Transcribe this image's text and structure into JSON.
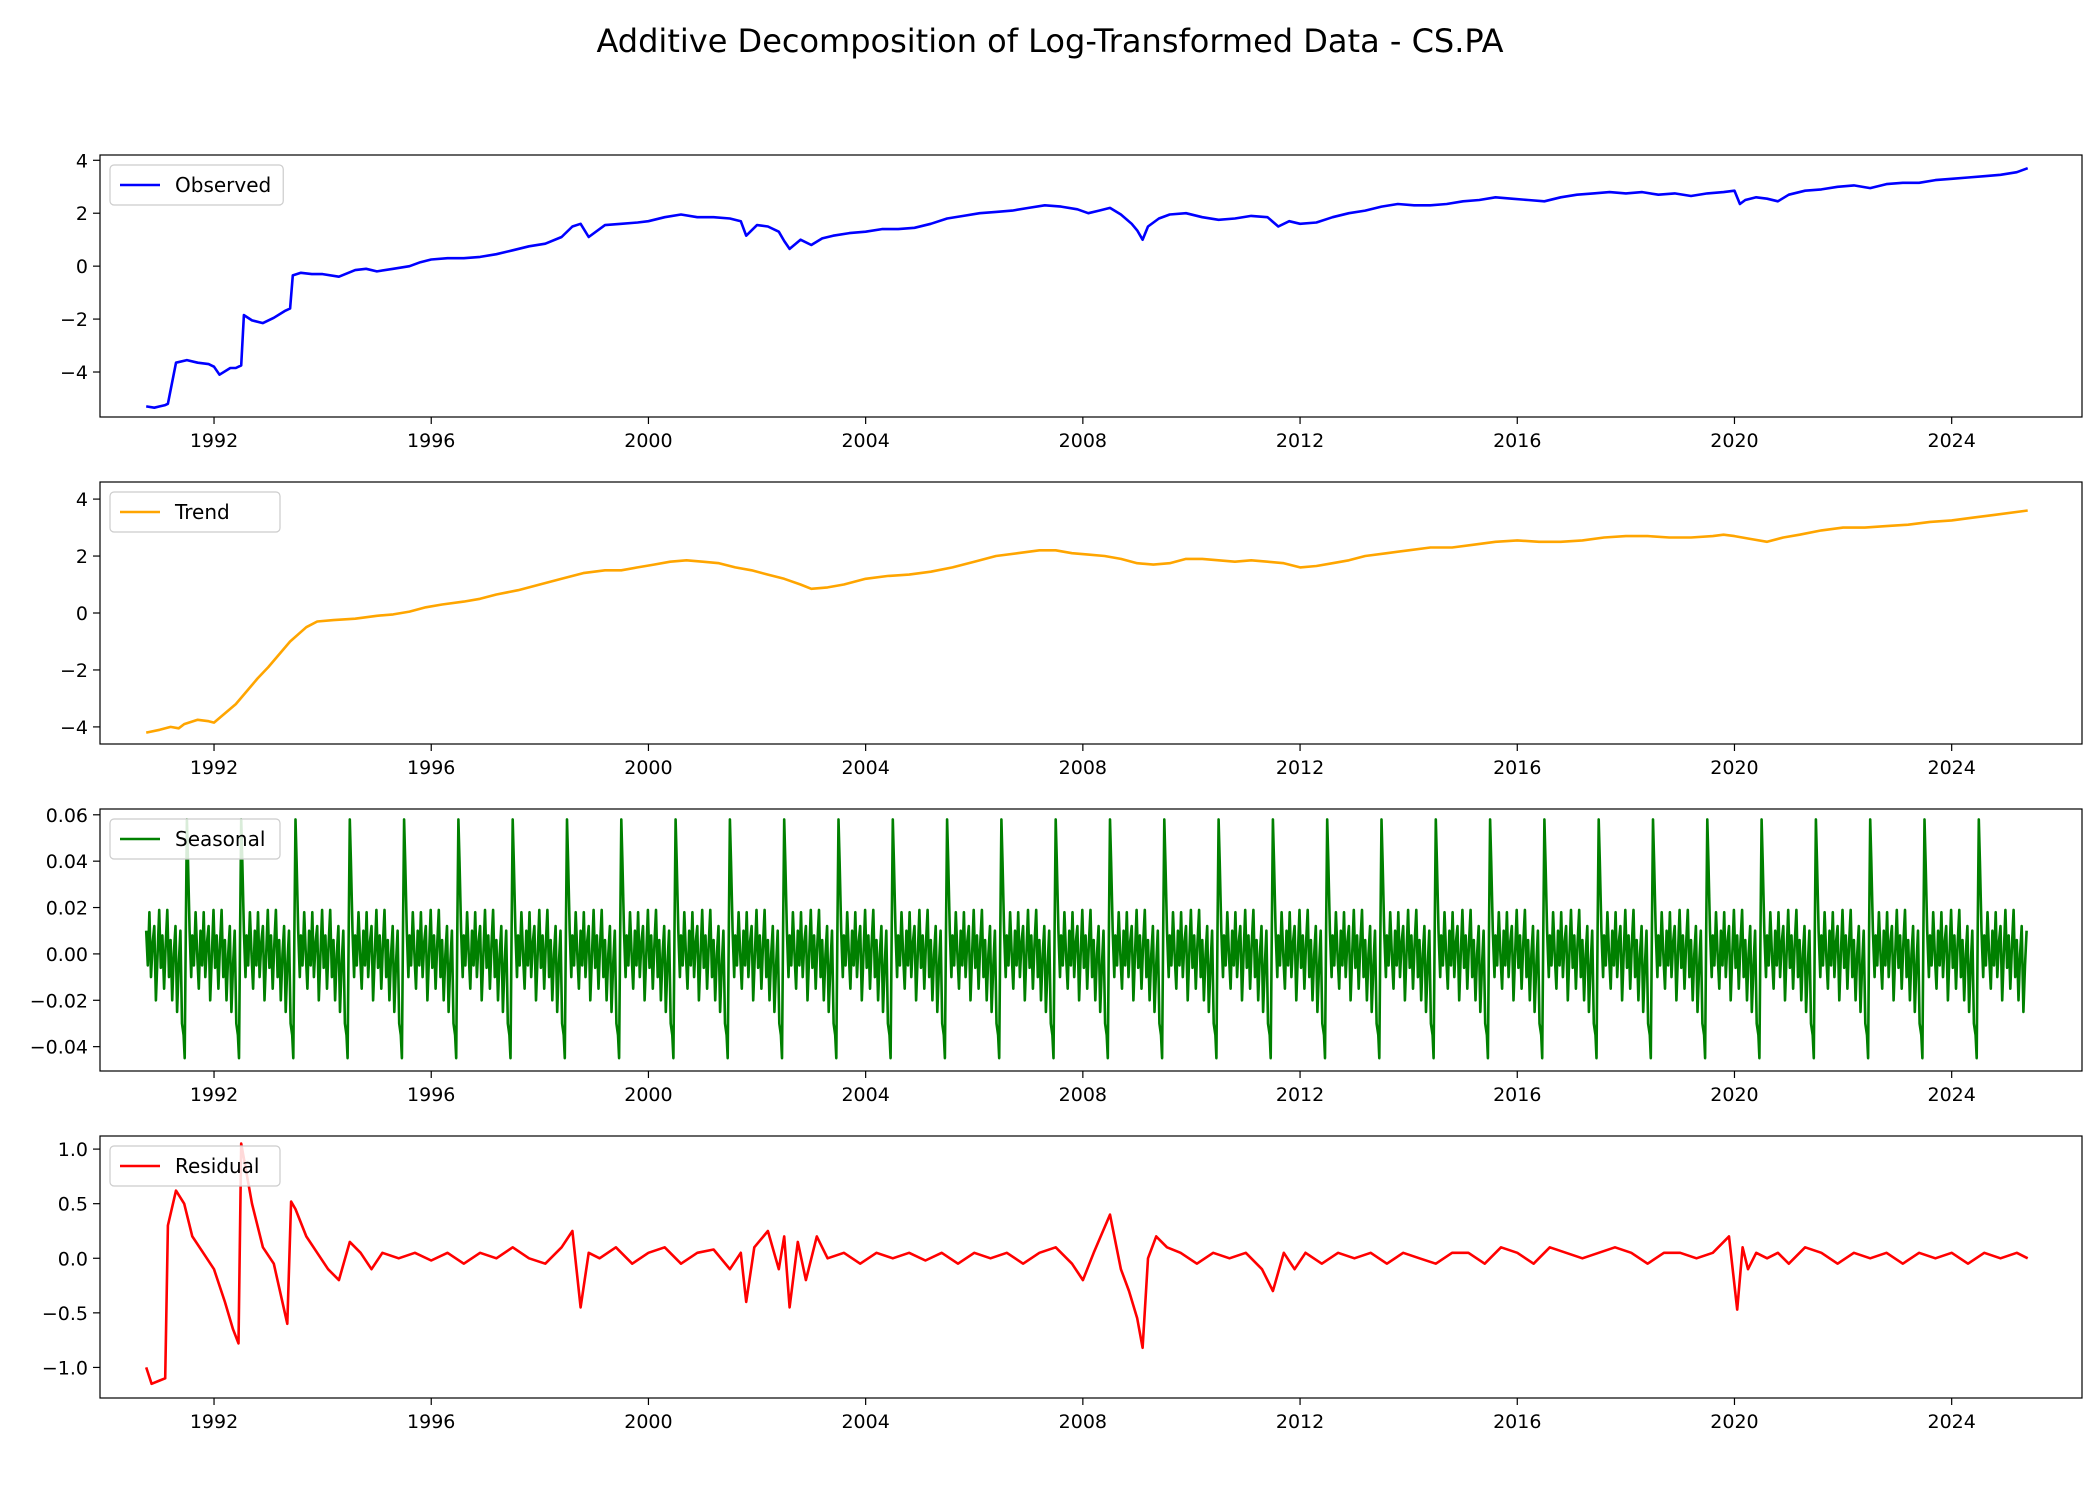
{
  "chart_data": {
    "type": "line",
    "title": "Additive Decomposition of Log-Transformed Data - CS.PA",
    "x_range": [
      1989.9,
      2026.4
    ],
    "x_ticks": [
      "1992",
      "1996",
      "2000",
      "2004",
      "2008",
      "2012",
      "2016",
      "2020",
      "2024"
    ],
    "panels": [
      {
        "name": "Observed",
        "color": "#0000ff",
        "legend": "upper left",
        "ylim": [
          -5.7,
          4.2
        ],
        "y_ticks": [
          "4",
          "2",
          "0",
          "−2",
          "−4"
        ],
        "y_tick_values": [
          4,
          2,
          0,
          -2,
          -4
        ],
        "x": [
          1990.75,
          1990.9,
          1991.0,
          1991.1,
          1991.15,
          1991.3,
          1991.5,
          1991.7,
          1991.9,
          1992.0,
          1992.1,
          1992.3,
          1992.4,
          1992.5,
          1992.55,
          1992.7,
          1992.9,
          1993.1,
          1993.3,
          1993.4,
          1993.45,
          1993.6,
          1993.8,
          1994.0,
          1994.3,
          1994.6,
          1994.8,
          1995.0,
          1995.3,
          1995.6,
          1995.8,
          1996.0,
          1996.3,
          1996.6,
          1996.9,
          1997.2,
          1997.5,
          1997.8,
          1998.1,
          1998.4,
          1998.6,
          1998.75,
          1998.9,
          1999.2,
          1999.5,
          1999.8,
          2000.0,
          2000.3,
          2000.6,
          2000.9,
          2001.2,
          2001.5,
          2001.7,
          2001.8,
          2002.0,
          2002.2,
          2002.4,
          2002.5,
          2002.6,
          2002.8,
          2003.0,
          2003.2,
          2003.4,
          2003.7,
          2004.0,
          2004.3,
          2004.6,
          2004.9,
          2005.2,
          2005.5,
          2005.8,
          2006.1,
          2006.4,
          2006.7,
          2007.0,
          2007.3,
          2007.6,
          2007.9,
          2008.1,
          2008.3,
          2008.5,
          2008.7,
          2008.9,
          2009.0,
          2009.1,
          2009.2,
          2009.4,
          2009.6,
          2009.9,
          2010.2,
          2010.5,
          2010.8,
          2011.1,
          2011.4,
          2011.6,
          2011.8,
          2012.0,
          2012.3,
          2012.6,
          2012.9,
          2013.2,
          2013.5,
          2013.8,
          2014.1,
          2014.4,
          2014.7,
          2015.0,
          2015.3,
          2015.6,
          2015.9,
          2016.2,
          2016.5,
          2016.8,
          2017.1,
          2017.4,
          2017.7,
          2018.0,
          2018.3,
          2018.6,
          2018.9,
          2019.2,
          2019.5,
          2019.8,
          2020.0,
          2020.1,
          2020.2,
          2020.4,
          2020.6,
          2020.8,
          2021.0,
          2021.3,
          2021.6,
          2021.9,
          2022.2,
          2022.5,
          2022.8,
          2023.1,
          2023.4,
          2023.7,
          2024.0,
          2024.3,
          2024.6,
          2024.9,
          2025.2,
          2025.4
        ],
        "y": [
          -5.3,
          -5.35,
          -5.3,
          -5.25,
          -5.2,
          -3.65,
          -3.55,
          -3.65,
          -3.7,
          -3.8,
          -4.1,
          -3.85,
          -3.85,
          -3.75,
          -1.85,
          -2.05,
          -2.15,
          -1.95,
          -1.7,
          -1.6,
          -0.35,
          -0.25,
          -0.3,
          -0.3,
          -0.4,
          -0.15,
          -0.1,
          -0.2,
          -0.1,
          0.0,
          0.15,
          0.25,
          0.3,
          0.3,
          0.35,
          0.45,
          0.6,
          0.75,
          0.85,
          1.1,
          1.5,
          1.6,
          1.1,
          1.55,
          1.6,
          1.65,
          1.7,
          1.85,
          1.95,
          1.85,
          1.85,
          1.8,
          1.7,
          1.15,
          1.55,
          1.5,
          1.3,
          0.95,
          0.65,
          1.0,
          0.8,
          1.05,
          1.15,
          1.25,
          1.3,
          1.4,
          1.4,
          1.45,
          1.6,
          1.8,
          1.9,
          2.0,
          2.05,
          2.1,
          2.2,
          2.3,
          2.25,
          2.15,
          2.0,
          2.1,
          2.2,
          1.95,
          1.6,
          1.35,
          1.0,
          1.5,
          1.8,
          1.95,
          2.0,
          1.85,
          1.75,
          1.8,
          1.9,
          1.85,
          1.5,
          1.7,
          1.6,
          1.65,
          1.85,
          2.0,
          2.1,
          2.25,
          2.35,
          2.3,
          2.3,
          2.35,
          2.45,
          2.5,
          2.6,
          2.55,
          2.5,
          2.45,
          2.6,
          2.7,
          2.75,
          2.8,
          2.75,
          2.8,
          2.7,
          2.75,
          2.65,
          2.75,
          2.8,
          2.85,
          2.35,
          2.5,
          2.6,
          2.55,
          2.45,
          2.7,
          2.85,
          2.9,
          3.0,
          3.05,
          2.95,
          3.1,
          3.15,
          3.15,
          3.25,
          3.3,
          3.35,
          3.4,
          3.45,
          3.55,
          3.7
        ]
      },
      {
        "name": "Trend",
        "color": "#ffa500",
        "legend": "upper left",
        "ylim": [
          -4.6,
          4.6
        ],
        "y_ticks": [
          "4",
          "2",
          "0",
          "−2",
          "−4"
        ],
        "y_tick_values": [
          4,
          2,
          0,
          -2,
          -4
        ],
        "x": [
          1990.75,
          1991.0,
          1991.2,
          1991.35,
          1991.45,
          1991.7,
          1991.9,
          1992.0,
          1992.4,
          1992.8,
          1993.0,
          1993.4,
          1993.7,
          1993.9,
          1994.2,
          1994.6,
          1995.0,
          1995.3,
          1995.6,
          1995.9,
          1996.2,
          1996.6,
          1996.9,
          1997.2,
          1997.6,
          1998.0,
          1998.4,
          1998.8,
          1999.2,
          1999.5,
          1999.8,
          2000.1,
          2000.4,
          2000.7,
          2001.0,
          2001.3,
          2001.6,
          2001.9,
          2002.2,
          2002.5,
          2002.8,
          2003.0,
          2003.3,
          2003.6,
          2004.0,
          2004.4,
          2004.8,
          2005.2,
          2005.6,
          2006.0,
          2006.4,
          2006.8,
          2007.2,
          2007.5,
          2007.8,
          2008.1,
          2008.4,
          2008.7,
          2009.0,
          2009.3,
          2009.6,
          2009.9,
          2010.2,
          2010.5,
          2010.8,
          2011.1,
          2011.4,
          2011.7,
          2012.0,
          2012.3,
          2012.6,
          2012.9,
          2013.2,
          2013.6,
          2014.0,
          2014.4,
          2014.8,
          2015.2,
          2015.6,
          2016.0,
          2016.4,
          2016.8,
          2017.2,
          2017.6,
          2018.0,
          2018.4,
          2018.8,
          2019.2,
          2019.6,
          2019.8,
          2020.0,
          2020.3,
          2020.6,
          2020.9,
          2021.2,
          2021.6,
          2022.0,
          2022.4,
          2022.8,
          2023.2,
          2023.6,
          2024.0,
          2024.4,
          2024.8,
          2025.4
        ],
        "y": [
          -4.2,
          -4.1,
          -4.0,
          -4.05,
          -3.9,
          -3.75,
          -3.8,
          -3.85,
          -3.2,
          -2.3,
          -1.9,
          -1.0,
          -0.5,
          -0.3,
          -0.25,
          -0.2,
          -0.1,
          -0.05,
          0.05,
          0.2,
          0.3,
          0.4,
          0.5,
          0.65,
          0.8,
          1.0,
          1.2,
          1.4,
          1.5,
          1.5,
          1.6,
          1.7,
          1.8,
          1.85,
          1.8,
          1.75,
          1.6,
          1.5,
          1.35,
          1.2,
          1.0,
          0.85,
          0.9,
          1.0,
          1.2,
          1.3,
          1.35,
          1.45,
          1.6,
          1.8,
          2.0,
          2.1,
          2.2,
          2.2,
          2.1,
          2.05,
          2.0,
          1.9,
          1.75,
          1.7,
          1.75,
          1.9,
          1.9,
          1.85,
          1.8,
          1.85,
          1.8,
          1.75,
          1.6,
          1.65,
          1.75,
          1.85,
          2.0,
          2.1,
          2.2,
          2.3,
          2.3,
          2.4,
          2.5,
          2.55,
          2.5,
          2.5,
          2.55,
          2.65,
          2.7,
          2.7,
          2.65,
          2.65,
          2.7,
          2.75,
          2.7,
          2.6,
          2.5,
          2.65,
          2.75,
          2.9,
          3.0,
          3.0,
          3.05,
          3.1,
          3.2,
          3.25,
          3.35,
          3.45,
          3.6
        ]
      },
      {
        "name": "Seasonal",
        "color": "#008000",
        "legend": "upper left",
        "ylim": [
          -0.0505,
          0.0625
        ],
        "y_ticks": [
          "0.06",
          "0.04",
          "0.02",
          "0.00",
          "−0.02",
          "−0.04"
        ],
        "y_tick_values": [
          0.06,
          0.04,
          0.02,
          0.0,
          -0.02,
          -0.04
        ],
        "period_years": 1.0,
        "phase_offset_years": 0.5,
        "x_start": 1990.75,
        "x_end": 2025.4,
        "cycle_phase": [
          0.0,
          0.02,
          0.05,
          0.08,
          0.1,
          0.13,
          0.16,
          0.19,
          0.22,
          0.25,
          0.28,
          0.31,
          0.34,
          0.37,
          0.4,
          0.43,
          0.46,
          0.49,
          0.52,
          0.55,
          0.58,
          0.61,
          0.64,
          0.67,
          0.7,
          0.73,
          0.76,
          0.79,
          0.82,
          0.85,
          0.88,
          0.91,
          0.94,
          0.96,
          0.98,
          1.0
        ],
        "cycle_value": [
          0.058,
          0.04,
          0.01,
          -0.01,
          0.008,
          -0.005,
          0.018,
          0.0,
          -0.015,
          0.01,
          -0.005,
          0.018,
          -0.01,
          0.005,
          0.012,
          -0.02,
          0.0,
          0.019,
          -0.006,
          0.008,
          -0.015,
          0.004,
          0.019,
          -0.01,
          0.006,
          -0.02,
          0.0,
          0.012,
          -0.025,
          -0.005,
          0.01,
          -0.03,
          -0.035,
          -0.045,
          0.01,
          0.058
        ]
      },
      {
        "name": "Residual",
        "color": "#ff0000",
        "legend": "upper left",
        "ylim": [
          -1.28,
          1.12
        ],
        "y_ticks": [
          "1.0",
          "0.5",
          "0.0",
          "−0.5",
          "−1.0"
        ],
        "y_tick_values": [
          1.0,
          0.5,
          0.0,
          -0.5,
          -1.0
        ],
        "x": [
          1990.75,
          1990.85,
          1991.0,
          1991.1,
          1991.15,
          1991.3,
          1991.45,
          1991.6,
          1991.8,
          1992.0,
          1992.2,
          1992.35,
          1992.45,
          1992.5,
          1992.7,
          1992.9,
          1993.1,
          1993.35,
          1993.42,
          1993.5,
          1993.7,
          1993.9,
          1994.1,
          1994.3,
          1994.5,
          1994.7,
          1994.9,
          1995.1,
          1995.4,
          1995.7,
          1996.0,
          1996.3,
          1996.6,
          1996.9,
          1997.2,
          1997.5,
          1997.8,
          1998.1,
          1998.4,
          1998.6,
          1998.75,
          1998.9,
          1999.1,
          1999.4,
          1999.7,
          2000.0,
          2000.3,
          2000.6,
          2000.9,
          2001.2,
          2001.5,
          2001.7,
          2001.8,
          2001.95,
          2002.2,
          2002.4,
          2002.5,
          2002.6,
          2002.75,
          2002.9,
          2003.1,
          2003.3,
          2003.6,
          2003.9,
          2004.2,
          2004.5,
          2004.8,
          2005.1,
          2005.4,
          2005.7,
          2006.0,
          2006.3,
          2006.6,
          2006.9,
          2007.2,
          2007.5,
          2007.8,
          2008.0,
          2008.2,
          2008.5,
          2008.7,
          2008.85,
          2009.0,
          2009.1,
          2009.2,
          2009.35,
          2009.55,
          2009.8,
          2010.1,
          2010.4,
          2010.7,
          2011.0,
          2011.3,
          2011.5,
          2011.7,
          2011.9,
          2012.1,
          2012.4,
          2012.7,
          2013.0,
          2013.3,
          2013.6,
          2013.9,
          2014.2,
          2014.5,
          2014.8,
          2015.1,
          2015.4,
          2015.7,
          2016.0,
          2016.3,
          2016.6,
          2016.9,
          2017.2,
          2017.5,
          2017.8,
          2018.1,
          2018.4,
          2018.7,
          2019.0,
          2019.3,
          2019.6,
          2019.9,
          2020.05,
          2020.15,
          2020.25,
          2020.4,
          2020.6,
          2020.8,
          2021.0,
          2021.3,
          2021.6,
          2021.9,
          2022.2,
          2022.5,
          2022.8,
          2023.1,
          2023.4,
          2023.7,
          2024.0,
          2024.3,
          2024.6,
          2024.9,
          2025.2,
          2025.4
        ],
        "y": [
          -1.0,
          -1.15,
          -1.12,
          -1.1,
          0.3,
          0.62,
          0.5,
          0.2,
          0.05,
          -0.1,
          -0.4,
          -0.65,
          -0.78,
          1.05,
          0.5,
          0.1,
          -0.05,
          -0.6,
          0.52,
          0.45,
          0.2,
          0.05,
          -0.1,
          -0.2,
          0.15,
          0.05,
          -0.1,
          0.05,
          0.0,
          0.05,
          -0.02,
          0.05,
          -0.05,
          0.05,
          0.0,
          0.1,
          0.0,
          -0.05,
          0.1,
          0.25,
          -0.45,
          0.05,
          0.0,
          0.1,
          -0.05,
          0.05,
          0.1,
          -0.05,
          0.05,
          0.08,
          -0.1,
          0.05,
          -0.4,
          0.1,
          0.25,
          -0.1,
          0.2,
          -0.45,
          0.15,
          -0.2,
          0.2,
          0.0,
          0.05,
          -0.05,
          0.05,
          0.0,
          0.05,
          -0.02,
          0.05,
          -0.05,
          0.05,
          0.0,
          0.05,
          -0.05,
          0.05,
          0.1,
          -0.05,
          -0.2,
          0.05,
          0.4,
          -0.1,
          -0.3,
          -0.55,
          -0.82,
          0.0,
          0.2,
          0.1,
          0.05,
          -0.05,
          0.05,
          0.0,
          0.05,
          -0.1,
          -0.3,
          0.05,
          -0.1,
          0.05,
          -0.05,
          0.05,
          0.0,
          0.05,
          -0.05,
          0.05,
          0.0,
          -0.05,
          0.05,
          0.05,
          -0.05,
          0.1,
          0.05,
          -0.05,
          0.1,
          0.05,
          0.0,
          0.05,
          0.1,
          0.05,
          -0.05,
          0.05,
          0.05,
          0.0,
          0.05,
          0.2,
          -0.47,
          0.1,
          -0.1,
          0.05,
          0.0,
          0.05,
          -0.05,
          0.1,
          0.05,
          -0.05,
          0.05,
          0.0,
          0.05,
          -0.05,
          0.05,
          0.0,
          0.05,
          -0.05,
          0.05,
          0.0,
          0.05,
          0.0
        ]
      }
    ]
  }
}
